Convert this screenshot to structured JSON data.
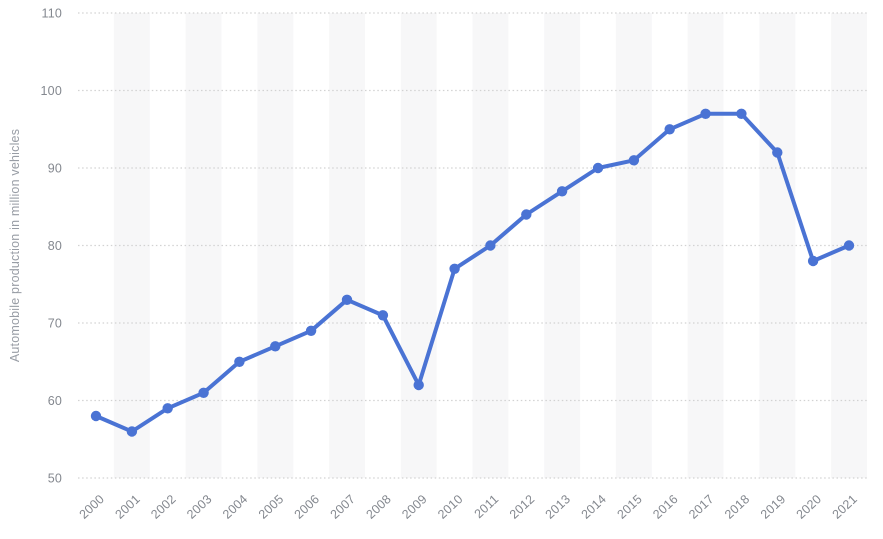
{
  "chart_data": {
    "type": "line",
    "title": "",
    "xlabel": "",
    "ylabel": "Automobile production in million vehicles",
    "x": [
      2000,
      2001,
      2002,
      2003,
      2004,
      2005,
      2006,
      2007,
      2008,
      2009,
      2010,
      2011,
      2012,
      2013,
      2014,
      2015,
      2016,
      2017,
      2018,
      2019,
      2020,
      2021
    ],
    "values": [
      58,
      56,
      59,
      61,
      65,
      67,
      69,
      73,
      71,
      62,
      77,
      80,
      84,
      87,
      90,
      91,
      95,
      97,
      97,
      92,
      78,
      80
    ],
    "ylim": [
      50,
      110
    ],
    "yticks": [
      50,
      60,
      70,
      80,
      90,
      100,
      110
    ],
    "grid": "horizontal-dotted",
    "legend": "none",
    "plot_bands": "alternating vertical stripes on odd years",
    "colors": {
      "line": "#4a73d4",
      "marker": "#4a73d4",
      "grid": "#d2d2d2",
      "stripe": "#f7f7f8",
      "tick_text": "#84888f",
      "axis_title_text": "#989da5",
      "background": "#ffffff"
    }
  }
}
